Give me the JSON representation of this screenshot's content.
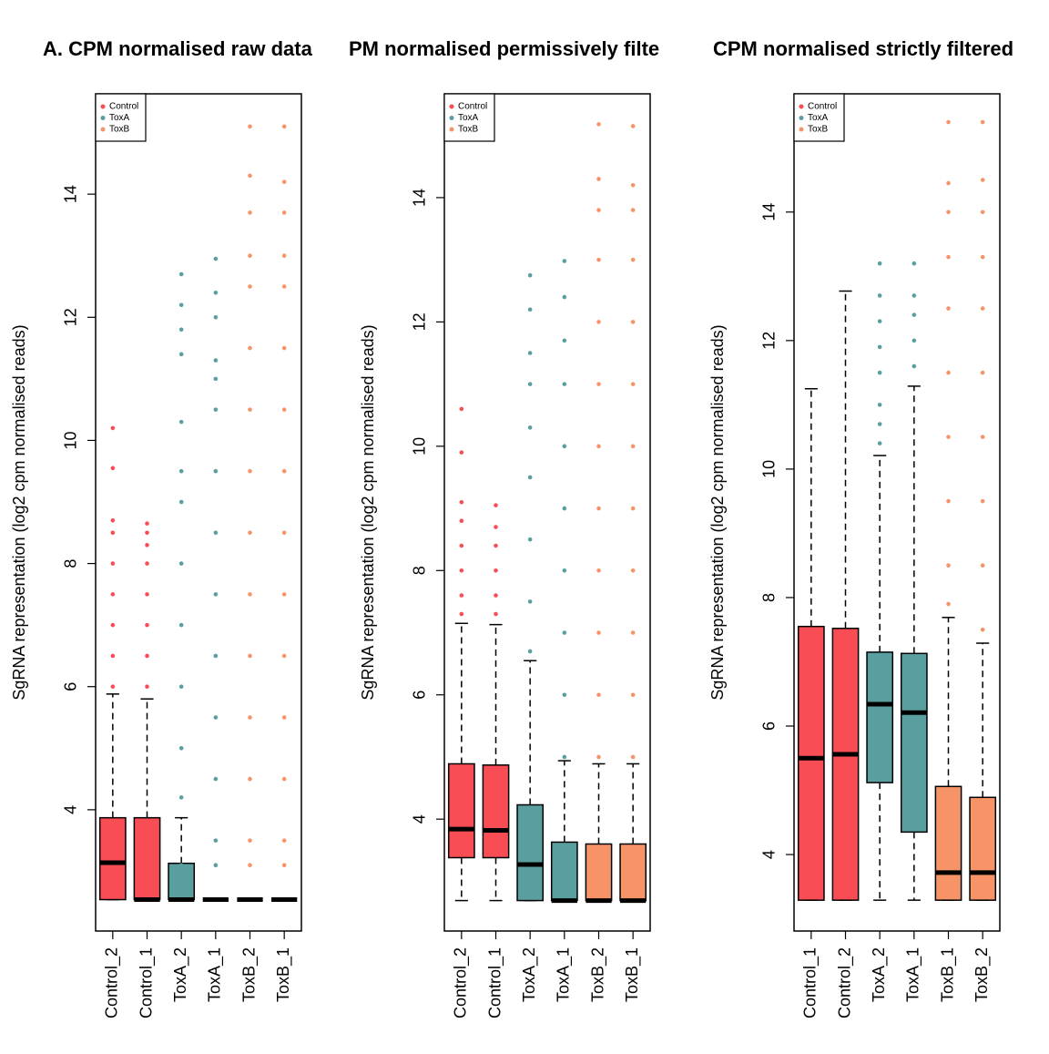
{
  "chart_data": [
    {
      "type": "boxplot",
      "title": "A. CPM normalised raw data",
      "ylabel": "SgRNA representation (log2 cpm normalised reads)",
      "categories": [
        "Control_2",
        "Control_1",
        "ToxA_2",
        "ToxA_1",
        "ToxB_2",
        "ToxB_1"
      ],
      "box_groups": [
        0,
        0,
        1,
        1,
        2,
        2
      ],
      "legend": [
        {
          "name": "Control",
          "color": "#f94d56"
        },
        {
          "name": "ToxA",
          "color": "#5a9f9f"
        },
        {
          "name": "ToxB",
          "color": "#f69468"
        }
      ],
      "ylim": [
        2.03,
        15.63
      ],
      "yticks": [
        4,
        6,
        8,
        10,
        12,
        14
      ],
      "boxes": [
        {
          "min": 2.54,
          "q1": 2.54,
          "median": 3.14,
          "q3": 3.87,
          "max": 5.88,
          "outliers": [
            6.0,
            6.5,
            7.0,
            7.5,
            8.0,
            8.5,
            8.7,
            9.55,
            10.2
          ]
        },
        {
          "min": 2.54,
          "q1": 2.54,
          "median": 2.54,
          "q3": 3.87,
          "max": 5.8,
          "outliers": [
            6.0,
            6.5,
            7.0,
            7.5,
            8.0,
            8.3,
            8.5,
            8.65
          ]
        },
        {
          "min": 2.54,
          "q1": 2.54,
          "median": 2.54,
          "q3": 3.13,
          "max": 3.87,
          "outliers": [
            3.1,
            4.2,
            5.0,
            6.0,
            7.0,
            8.0,
            9.0,
            9.5,
            10.3,
            11.4,
            11.8,
            12.2,
            12.7
          ]
        },
        {
          "min": 2.54,
          "q1": 2.54,
          "median": 2.54,
          "q3": 2.54,
          "max": 2.54,
          "outliers": [
            3.1,
            3.5,
            4.5,
            5.5,
            6.5,
            7.5,
            8.5,
            9.5,
            10.5,
            11.0,
            11.3,
            12.0,
            12.4,
            12.95
          ]
        },
        {
          "min": 2.54,
          "q1": 2.54,
          "median": 2.54,
          "q3": 2.54,
          "max": 2.54,
          "outliers": [
            3.1,
            3.5,
            4.5,
            5.5,
            6.5,
            7.5,
            8.5,
            9.5,
            10.5,
            11.5,
            12.5,
            13.0,
            13.7,
            14.3,
            15.1
          ]
        },
        {
          "min": 2.54,
          "q1": 2.54,
          "median": 2.54,
          "q3": 2.54,
          "max": 2.54,
          "outliers": [
            3.1,
            3.5,
            4.5,
            5.5,
            6.5,
            7.5,
            8.5,
            9.5,
            10.5,
            11.5,
            12.5,
            13.0,
            13.7,
            14.2,
            15.1
          ]
        }
      ]
    },
    {
      "type": "boxplot",
      "title": "PM normalised permissively filte",
      "ylabel": "SgRNA representation (log2 cpm normalised reads)",
      "categories": [
        "Control_2",
        "Control_1",
        "ToxA_2",
        "ToxA_1",
        "ToxB_2",
        "ToxB_1"
      ],
      "box_groups": [
        0,
        0,
        1,
        1,
        2,
        2
      ],
      "legend": [
        {
          "name": "Control",
          "color": "#f94d56"
        },
        {
          "name": "ToxA",
          "color": "#5a9f9f"
        },
        {
          "name": "ToxB",
          "color": "#f69468"
        }
      ],
      "ylim": [
        2.2,
        15.67
      ],
      "yticks": [
        4,
        6,
        8,
        10,
        12,
        14
      ],
      "boxes": [
        {
          "min": 2.69,
          "q1": 3.38,
          "median": 3.84,
          "q3": 4.89,
          "max": 7.15,
          "outliers": [
            7.3,
            7.6,
            8.0,
            8.4,
            8.8,
            9.1,
            9.9,
            10.6
          ]
        },
        {
          "min": 2.69,
          "q1": 3.38,
          "median": 3.82,
          "q3": 4.87,
          "max": 7.13,
          "outliers": [
            7.3,
            7.6,
            8.0,
            8.4,
            8.7,
            9.05
          ]
        },
        {
          "min": 2.69,
          "q1": 2.69,
          "median": 3.27,
          "q3": 4.23,
          "max": 6.55,
          "outliers": [
            6.7,
            7.5,
            8.5,
            9.5,
            10.3,
            11.0,
            11.5,
            12.2,
            12.75
          ]
        },
        {
          "min": 2.69,
          "q1": 2.69,
          "median": 2.69,
          "q3": 3.63,
          "max": 4.94,
          "outliers": [
            5.0,
            6.0,
            7.0,
            8.0,
            9.0,
            10.0,
            11.0,
            11.7,
            12.4,
            12.98
          ]
        },
        {
          "min": 2.69,
          "q1": 2.69,
          "median": 2.69,
          "q3": 3.6,
          "max": 4.89,
          "outliers": [
            5.0,
            6.0,
            7.0,
            8.0,
            9.0,
            10.0,
            11.0,
            12.0,
            13.0,
            13.8,
            14.3,
            15.18
          ]
        },
        {
          "min": 2.69,
          "q1": 2.69,
          "median": 2.69,
          "q3": 3.6,
          "max": 4.89,
          "outliers": [
            5.0,
            6.0,
            7.0,
            8.0,
            9.0,
            10.0,
            11.0,
            12.0,
            13.0,
            13.8,
            14.2,
            15.15
          ]
        }
      ]
    },
    {
      "type": "boxplot",
      "title": "CPM normalised strictly filtered",
      "ylabel": "SgRNA representation (log2 cpm normalised reads)",
      "categories": [
        "Control_1",
        "Control_2",
        "ToxA_2",
        "ToxA_1",
        "ToxB_1",
        "ToxB_2"
      ],
      "box_groups": [
        0,
        0,
        1,
        1,
        2,
        2
      ],
      "legend": [
        {
          "name": "Control",
          "color": "#f94d56"
        },
        {
          "name": "ToxA",
          "color": "#5a9f9f"
        },
        {
          "name": "ToxB",
          "color": "#f69468"
        }
      ],
      "ylim": [
        2.81,
        15.84
      ],
      "yticks": [
        4,
        6,
        8,
        10,
        12,
        14
      ],
      "boxes": [
        {
          "min": 3.29,
          "q1": 3.29,
          "median": 5.5,
          "q3": 7.55,
          "max": 11.25,
          "outliers": []
        },
        {
          "min": 3.29,
          "q1": 3.29,
          "median": 5.56,
          "q3": 7.52,
          "max": 12.77,
          "outliers": []
        },
        {
          "min": 3.29,
          "q1": 5.12,
          "median": 6.34,
          "q3": 7.15,
          "max": 10.21,
          "outliers": [
            10.4,
            10.7,
            11.0,
            11.5,
            11.9,
            12.3,
            12.7,
            13.2
          ]
        },
        {
          "min": 3.29,
          "q1": 4.35,
          "median": 6.21,
          "q3": 7.13,
          "max": 11.29,
          "outliers": [
            11.6,
            12.0,
            12.4,
            12.7,
            13.2
          ]
        },
        {
          "min": 3.29,
          "q1": 3.29,
          "median": 3.72,
          "q3": 5.06,
          "max": 7.69,
          "outliers": [
            7.9,
            8.5,
            9.5,
            10.5,
            11.5,
            12.5,
            13.3,
            14.0,
            14.45,
            15.4
          ]
        },
        {
          "min": 3.29,
          "q1": 3.29,
          "median": 3.72,
          "q3": 4.89,
          "max": 7.29,
          "outliers": [
            7.5,
            8.5,
            9.5,
            10.5,
            11.5,
            12.5,
            13.3,
            14.0,
            14.5,
            15.4
          ]
        }
      ]
    }
  ]
}
